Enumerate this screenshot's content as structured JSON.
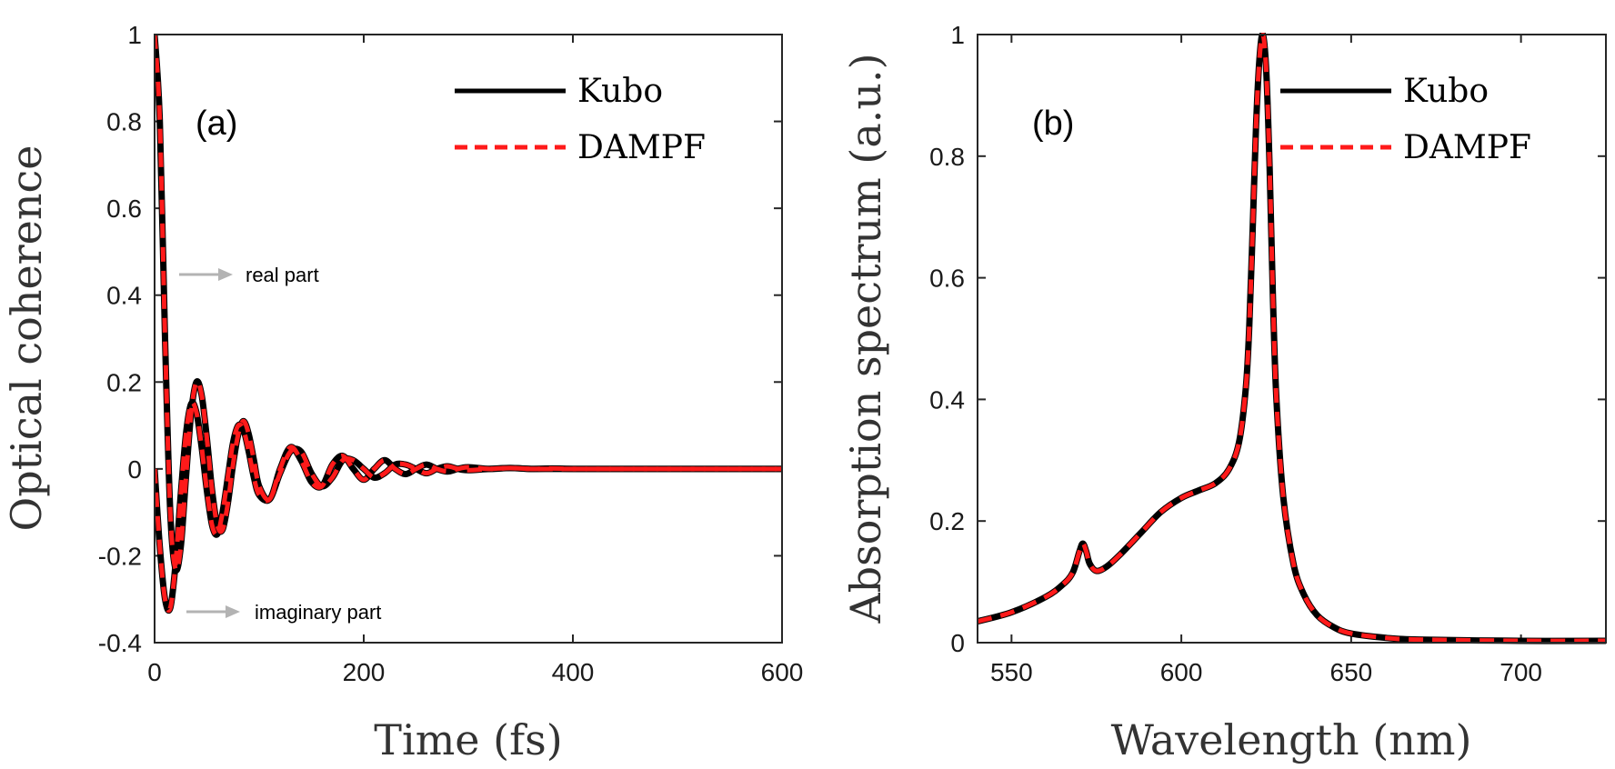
{
  "colors": {
    "kubo": "#000000",
    "dampf": "#ff1a1a",
    "arrow": "#b3b3b3",
    "axis": "#262626"
  },
  "chart_data": [
    {
      "type": "line",
      "panel_label": "(a)",
      "title": "",
      "xlabel": "Time (fs)",
      "ylabel": "Optical coherence",
      "xlim": [
        0,
        600
      ],
      "ylim": [
        -0.4,
        1
      ],
      "xticks": [
        0,
        200,
        400,
        600
      ],
      "xtick_labels": [
        "0",
        "200",
        "400",
        "600"
      ],
      "yticks": [
        -0.4,
        -0.2,
        0,
        0.2,
        0.4,
        0.6,
        0.8,
        1
      ],
      "ytick_labels": [
        "-0.4",
        "-0.2",
        "0",
        "0.2",
        "0.4",
        "0.6",
        "0.8",
        "1"
      ],
      "legend": [
        "Kubo",
        "DAMPF"
      ],
      "legend_position": "top-right",
      "annotations": [
        "real part",
        "imaginary part"
      ],
      "x": [
        0,
        5,
        10,
        15,
        20,
        25,
        30,
        35,
        40,
        45,
        50,
        55,
        60,
        65,
        70,
        75,
        80,
        85,
        90,
        95,
        100,
        110,
        120,
        130,
        140,
        150,
        160,
        170,
        180,
        190,
        200,
        210,
        220,
        230,
        240,
        250,
        260,
        270,
        280,
        290,
        300,
        320,
        340,
        360,
        380,
        400,
        450,
        500,
        550,
        600
      ],
      "series": [
        {
          "name": "Kubo real part",
          "values": [
            1.0,
            0.8,
            0.3,
            -0.1,
            -0.23,
            -0.18,
            -0.02,
            0.13,
            0.2,
            0.17,
            0.07,
            -0.05,
            -0.13,
            -0.14,
            -0.08,
            0.01,
            0.08,
            0.11,
            0.08,
            0.02,
            -0.04,
            -0.07,
            0.0,
            0.05,
            0.02,
            -0.03,
            -0.04,
            0.01,
            0.03,
            0.0,
            -0.025,
            0.0,
            0.02,
            0.0,
            -0.012,
            0.0,
            0.01,
            0.0,
            -0.006,
            0.0,
            0.004,
            0.0,
            0.002,
            0.0,
            0.001,
            0.0,
            0.0,
            0.0,
            0.0,
            0.0
          ]
        },
        {
          "name": "Kubo imaginary part",
          "values": [
            0.0,
            -0.18,
            -0.3,
            -0.32,
            -0.22,
            -0.06,
            0.08,
            0.15,
            0.13,
            0.05,
            -0.05,
            -0.13,
            -0.15,
            -0.1,
            -0.02,
            0.06,
            0.1,
            0.09,
            0.04,
            -0.02,
            -0.06,
            -0.07,
            -0.01,
            0.04,
            0.04,
            -0.01,
            -0.04,
            -0.02,
            0.02,
            0.02,
            0.0,
            -0.02,
            -0.01,
            0.01,
            0.01,
            0.0,
            -0.01,
            0.0,
            0.006,
            0.0,
            -0.003,
            0.0,
            0.002,
            0.0,
            0.0,
            0.0,
            0.0,
            0.0,
            0.0,
            0.0
          ]
        },
        {
          "name": "DAMPF real part",
          "values": [
            1.0,
            0.8,
            0.3,
            -0.1,
            -0.23,
            -0.18,
            -0.02,
            0.13,
            0.2,
            0.17,
            0.07,
            -0.05,
            -0.13,
            -0.14,
            -0.08,
            0.01,
            0.08,
            0.11,
            0.08,
            0.02,
            -0.04,
            -0.07,
            0.0,
            0.05,
            0.02,
            -0.03,
            -0.04,
            0.01,
            0.03,
            0.0,
            -0.025,
            0.0,
            0.02,
            0.0,
            -0.012,
            0.0,
            0.01,
            0.0,
            -0.006,
            0.0,
            0.004,
            0.0,
            0.002,
            0.0,
            0.001,
            0.0,
            0.0,
            0.0,
            0.0,
            0.0
          ]
        },
        {
          "name": "DAMPF imaginary part",
          "values": [
            0.0,
            -0.18,
            -0.3,
            -0.32,
            -0.22,
            -0.06,
            0.08,
            0.15,
            0.13,
            0.05,
            -0.05,
            -0.13,
            -0.15,
            -0.1,
            -0.02,
            0.06,
            0.1,
            0.09,
            0.04,
            -0.02,
            -0.06,
            -0.07,
            -0.01,
            0.04,
            0.04,
            -0.01,
            -0.04,
            -0.02,
            0.02,
            0.02,
            0.0,
            -0.02,
            -0.01,
            0.01,
            0.01,
            0.0,
            -0.01,
            0.0,
            0.006,
            0.0,
            -0.003,
            0.0,
            0.002,
            0.0,
            0.0,
            0.0,
            0.0,
            0.0,
            0.0,
            0.0
          ]
        }
      ]
    },
    {
      "type": "line",
      "panel_label": "(b)",
      "title": "",
      "xlabel": "Wavelength (nm)",
      "ylabel": "Absorption spectrum (a.u.)",
      "xlim": [
        540,
        725
      ],
      "ylim": [
        0,
        1
      ],
      "xticks": [
        550,
        600,
        650,
        700
      ],
      "xtick_labels": [
        "550",
        "600",
        "650",
        "700"
      ],
      "yticks": [
        0,
        0.2,
        0.4,
        0.6,
        0.8,
        1
      ],
      "ytick_labels": [
        "0",
        "0.2",
        "0.4",
        "0.6",
        "0.8",
        "1"
      ],
      "legend": [
        "Kubo",
        "DAMPF"
      ],
      "legend_position": "top-right",
      "x": [
        540,
        550,
        560,
        565,
        568,
        570,
        571,
        572,
        573,
        575,
        578,
        582,
        588,
        594,
        600,
        605,
        610,
        614,
        617,
        619,
        620,
        621,
        622,
        623,
        624,
        625,
        626,
        627,
        628,
        630,
        633,
        636,
        640,
        645,
        650,
        660,
        670,
        700,
        725
      ],
      "series": [
        {
          "name": "Kubo",
          "values": [
            0.035,
            0.05,
            0.075,
            0.095,
            0.115,
            0.15,
            0.163,
            0.15,
            0.13,
            0.118,
            0.125,
            0.145,
            0.18,
            0.215,
            0.238,
            0.25,
            0.262,
            0.285,
            0.33,
            0.42,
            0.52,
            0.68,
            0.85,
            0.96,
            1.0,
            0.94,
            0.78,
            0.56,
            0.4,
            0.24,
            0.13,
            0.08,
            0.045,
            0.025,
            0.015,
            0.008,
            0.005,
            0.003,
            0.003
          ]
        },
        {
          "name": "DAMPF",
          "values": [
            0.035,
            0.05,
            0.075,
            0.095,
            0.115,
            0.15,
            0.163,
            0.15,
            0.13,
            0.118,
            0.125,
            0.145,
            0.18,
            0.215,
            0.238,
            0.25,
            0.262,
            0.285,
            0.33,
            0.42,
            0.52,
            0.68,
            0.85,
            0.96,
            1.0,
            0.94,
            0.78,
            0.56,
            0.4,
            0.24,
            0.13,
            0.08,
            0.045,
            0.025,
            0.015,
            0.008,
            0.005,
            0.003,
            0.003
          ]
        }
      ]
    }
  ]
}
